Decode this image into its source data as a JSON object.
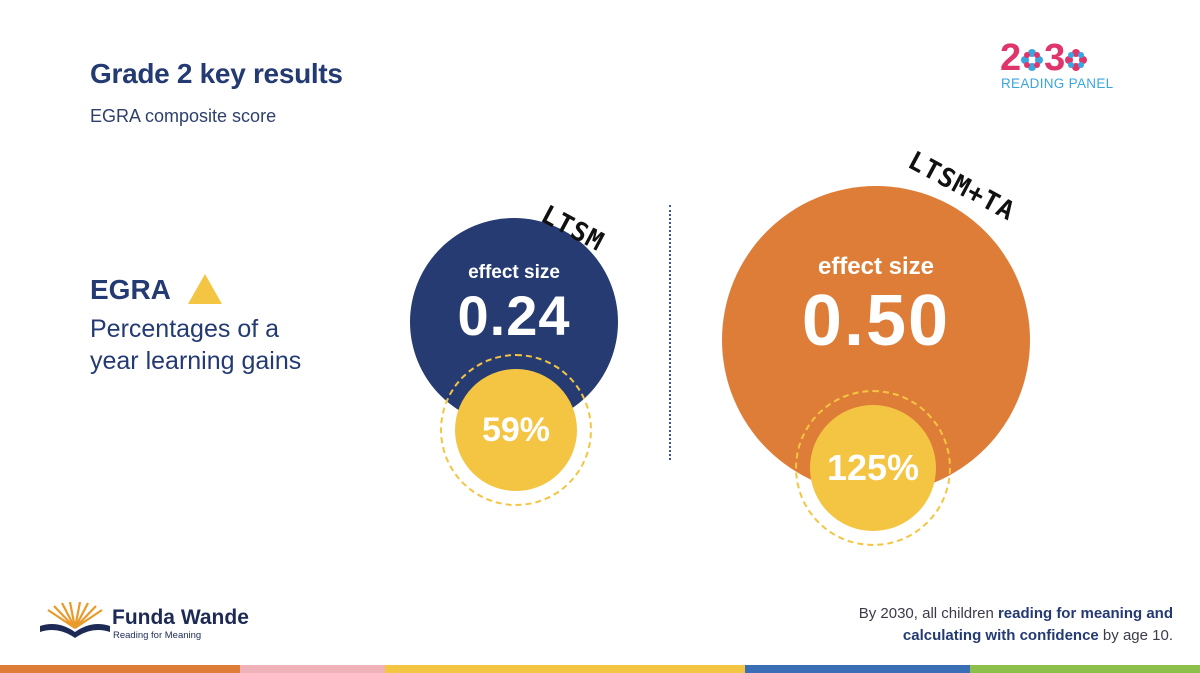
{
  "header": {
    "title": "Grade 2 key results",
    "subtitle": "EGRA composite score"
  },
  "panel_logo": {
    "digit_2": "2",
    "digit_3": "3",
    "subtitle": "READING PANEL",
    "color_pink": "#e0356b",
    "color_blue": "#3aa6df"
  },
  "left": {
    "egra": "EGRA",
    "gains_line1": "Percentages of a",
    "gains_line2": "year learning gains",
    "triangle_icon": "triangle-icon"
  },
  "groups": [
    {
      "label": "LTSM",
      "effect_label": "effect size",
      "effect_value": "0.24",
      "percent": "59%",
      "color": "#253b72"
    },
    {
      "label": "LTSM+TA",
      "effect_label": "effect size",
      "effect_value": "0.50",
      "percent": "125%",
      "color": "#de7d38"
    }
  ],
  "footer": {
    "brand_name": "Funda Wande",
    "brand_tag": "Reading for Meaning",
    "tagline_prefix": "By 2030, all children ",
    "tagline_bold1": "reading for meaning and",
    "tagline_bold2": "calculating with confidence",
    "tagline_suffix": " by age 10."
  },
  "colors": {
    "navy": "#243a73",
    "yellow": "#f4c542",
    "stripe": [
      "#de7d38",
      "#efb2b8",
      "#f4c542",
      "#3b6fb5",
      "#8cc04a"
    ]
  }
}
